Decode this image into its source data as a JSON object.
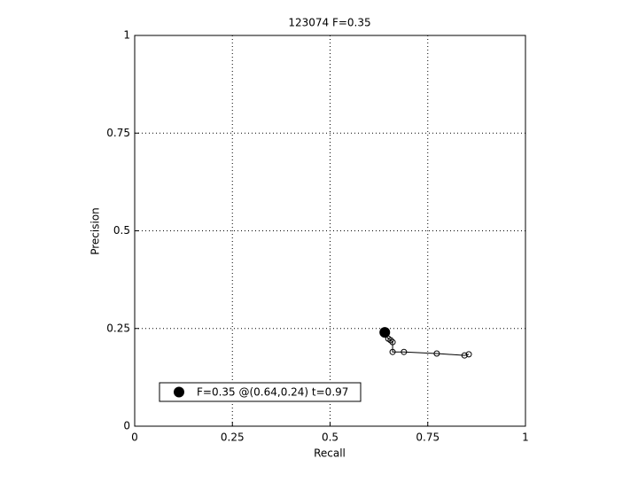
{
  "chart_data": {
    "type": "line",
    "title": "123074 F=0.35",
    "xlabel": "Recall",
    "ylabel": "Precision",
    "xlim": [
      0,
      1
    ],
    "ylim": [
      0,
      1
    ],
    "xticks": [
      0,
      0.25,
      0.5,
      0.75,
      1
    ],
    "yticks": [
      0,
      0.25,
      0.5,
      0.75,
      1
    ],
    "grid": true,
    "legend": "lower left",
    "series": [
      {
        "color": "#000000",
        "x": [
          0.637,
          0.649,
          0.655,
          0.66,
          0.66,
          0.689,
          0.773,
          0.844,
          0.855
        ],
        "values": [
          0.24,
          0.224,
          0.22,
          0.215,
          0.19,
          0.19,
          0.186,
          0.181,
          0.184
        ]
      },
      {
        "name": "F=0.35 @(0.64,0.24) t=0.97",
        "color": "#000000",
        "x": [
          0.64
        ],
        "values": [
          0.24
        ]
      }
    ]
  }
}
